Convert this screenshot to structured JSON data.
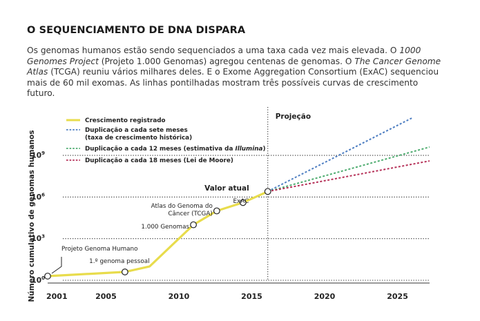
{
  "title": "O SEQUENCIAMENTO DE DNA DISPARA",
  "intro": {
    "p1": "Os genomas humanos estão sendo sequenciados a uma taxa cada vez mais elevada. O ",
    "i1": "1000 Genomes Project",
    "p2": " (Projeto 1.000 Genomas) agregou centenas de genomas. O ",
    "i2": "The Cancer Genome Atlas",
    "p3": " (TCGA) reuniu vários milhares deles. E o Exome Aggregation Consortium (ExAC) sequenciou mais de 60 mil exomas. As linhas pontilhadas mostram três possíveis curvas de crescimento futuro."
  },
  "chart_data": {
    "type": "line",
    "ylabel": "Número cumulativo de genomas humanos",
    "xlim": [
      2001,
      2027.2
    ],
    "ylim_log10": [
      0,
      10
    ],
    "x_ticks": [
      2001,
      2005,
      2010,
      2015,
      2020,
      2025
    ],
    "y_ticks": [
      {
        "exp": 0,
        "base": "10",
        "sup": "0"
      },
      {
        "exp": 3,
        "base": "10",
        "sup": "3"
      },
      {
        "exp": 6,
        "base": "10",
        "sup": "6"
      },
      {
        "exp": 9,
        "base": "10",
        "sup": "9"
      }
    ],
    "colors": {
      "registered": "#e8dc4c",
      "seven": "#4f7fc2",
      "twelve": "#4cab6e",
      "eighteen": "#b52f57",
      "grid": "#333333"
    },
    "legend": [
      {
        "key": "registered",
        "lines": [
          "Crescimento registrado"
        ]
      },
      {
        "key": "seven",
        "lines": [
          "Duplicação a cada sete meses",
          "(taxa de crescimento histórica)"
        ]
      },
      {
        "key": "twelve",
        "lines": [
          "Duplicação a cada 12 meses (estimativa da ",
          "Illumina",
          ")"
        ]
      },
      {
        "key": "eighteen",
        "lines": [
          "Duplicação a cada 18 meses (Lei de Moore)"
        ]
      }
    ],
    "series": [
      {
        "name": "Crescimento registrado",
        "key": "registered",
        "points": [
          [
            2001,
            0.3
          ],
          [
            2006.3,
            0.6
          ],
          [
            2008,
            1.0
          ],
          [
            2011,
            4.0
          ],
          [
            2012.6,
            5.0
          ],
          [
            2014.4,
            5.6
          ],
          [
            2016.1,
            6.4
          ]
        ]
      },
      {
        "name": "Duplicação a cada sete meses",
        "key": "seven",
        "points": [
          [
            2016.1,
            6.4
          ],
          [
            2026,
            11.7
          ]
        ]
      },
      {
        "name": "Duplicação a cada 12 meses",
        "key": "twelve",
        "points": [
          [
            2016.1,
            6.4
          ],
          [
            2027.2,
            9.6
          ]
        ]
      },
      {
        "name": "Duplicação a cada 18 meses",
        "key": "eighteen",
        "points": [
          [
            2016.1,
            6.4
          ],
          [
            2027.2,
            8.6
          ]
        ]
      }
    ],
    "markers": [
      {
        "label": "Projeto Genoma Humano",
        "x": 2001,
        "y": 0.3
      },
      {
        "label": "1.º genoma pessoal",
        "x": 2006.3,
        "y": 0.6
      },
      {
        "label": "1.000 Genomas",
        "x": 2011,
        "y": 4.0
      },
      {
        "label": "Atlas do Genoma do Câncer (TCGA)",
        "lines": [
          "Atlas do Genoma do",
          "Câncer (TCGA)"
        ],
        "x": 2012.6,
        "y": 5.0
      },
      {
        "label": "ExAC",
        "x": 2014.4,
        "y": 5.6
      },
      {
        "label": "Valor atual",
        "x": 2016.1,
        "y": 6.4
      }
    ],
    "projection": {
      "label": "Projeção",
      "x": 2016.1
    },
    "current_value_label": "Valor atual"
  }
}
